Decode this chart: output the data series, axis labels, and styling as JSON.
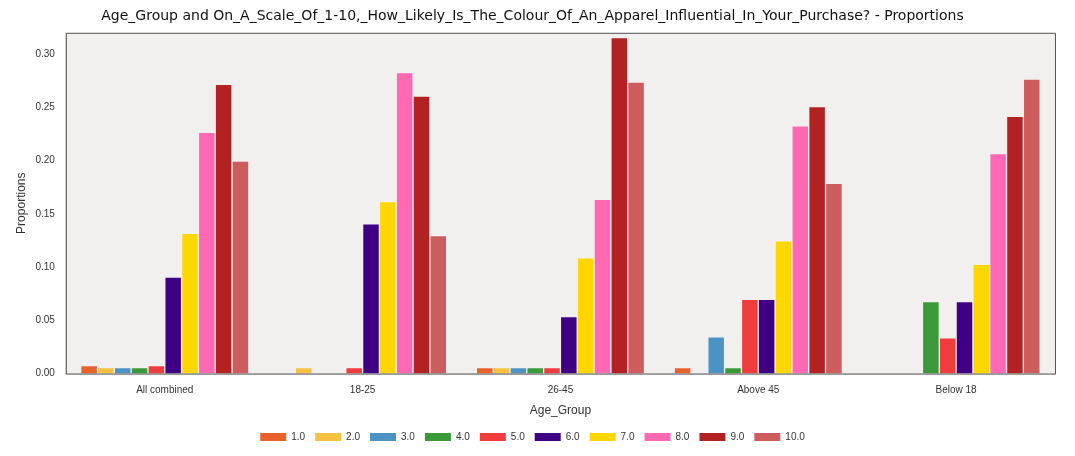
{
  "chart_data": {
    "type": "bar",
    "title": "Age_Group and On_A_Scale_Of_1-10,_How_Likely_Is_The_Colour_Of_An_Apparel_Influential_In_Your_Purchase? - Proportions",
    "xlabel": "Age_Group",
    "ylabel": "Proportions",
    "categories": [
      "All combined",
      "18-25",
      "26-45",
      "Above 45",
      "Below 18"
    ],
    "series": [
      {
        "name": "1.0",
        "color": "#e8622c",
        "values": [
          0.007,
          null,
          0.005,
          0.005,
          null
        ]
      },
      {
        "name": "2.0",
        "color": "#f5c242",
        "values": [
          0.005,
          0.005,
          0.005,
          null,
          null
        ]
      },
      {
        "name": "3.0",
        "color": "#4c93c4",
        "values": [
          0.005,
          null,
          0.005,
          0.034,
          null
        ]
      },
      {
        "name": "4.0",
        "color": "#3a9a3a",
        "values": [
          0.005,
          null,
          0.005,
          0.005,
          0.067
        ]
      },
      {
        "name": "5.0",
        "color": "#f03c3c",
        "values": [
          0.007,
          0.005,
          0.005,
          0.069,
          0.033
        ]
      },
      {
        "name": "6.0",
        "color": "#3f0084",
        "values": [
          0.09,
          0.14,
          0.053,
          0.069,
          0.067
        ]
      },
      {
        "name": "7.0",
        "color": "#ffd700",
        "values": [
          0.131,
          0.161,
          0.108,
          0.124,
          0.102
        ]
      },
      {
        "name": "8.0",
        "color": "#ff69b4",
        "values": [
          0.226,
          0.282,
          0.163,
          0.232,
          0.206
        ]
      },
      {
        "name": "9.0",
        "color": "#b22222",
        "values": [
          0.271,
          0.26,
          0.315,
          0.25,
          0.241
        ]
      },
      {
        "name": "10.0",
        "color": "#cd5c5c",
        "values": [
          0.199,
          0.129,
          0.273,
          0.178,
          0.276
        ]
      }
    ],
    "ylim": [
      0,
      0.32
    ],
    "yticks": [
      {
        "value": 0,
        "label": "0.00"
      },
      {
        "value": 0.05,
        "label": "0.05"
      },
      {
        "value": 0.1,
        "label": "0.10"
      },
      {
        "value": 0.15,
        "label": "0.15"
      },
      {
        "value": 0.2,
        "label": "0.20"
      },
      {
        "value": 0.25,
        "label": "0.25"
      },
      {
        "value": 0.3,
        "label": "0.30"
      }
    ],
    "grid": false,
    "legend": "bottom"
  }
}
